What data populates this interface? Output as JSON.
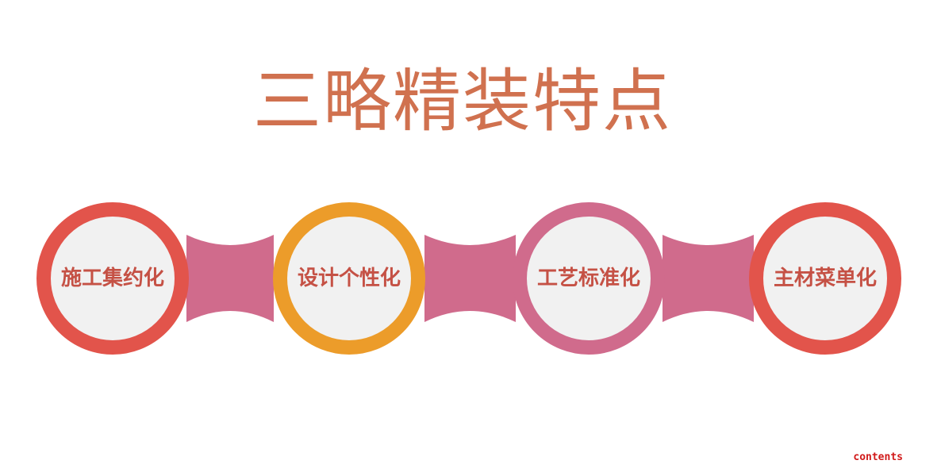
{
  "title": "三略精装特点",
  "colors": {
    "title": "#d0714f",
    "connector": "#d06b8c",
    "node_fill": "#f1f1f1",
    "label": "#c55145",
    "footer": "#d11a1a"
  },
  "nodes": [
    {
      "label": "施工集约化",
      "ring_color": "#e2544b"
    },
    {
      "label": "设计个性化",
      "ring_color": "#ec9c2a"
    },
    {
      "label": "工艺标准化",
      "ring_color": "#d06b8c"
    },
    {
      "label": "主材菜单化",
      "ring_color": "#e2544b"
    }
  ],
  "footer": "contents"
}
